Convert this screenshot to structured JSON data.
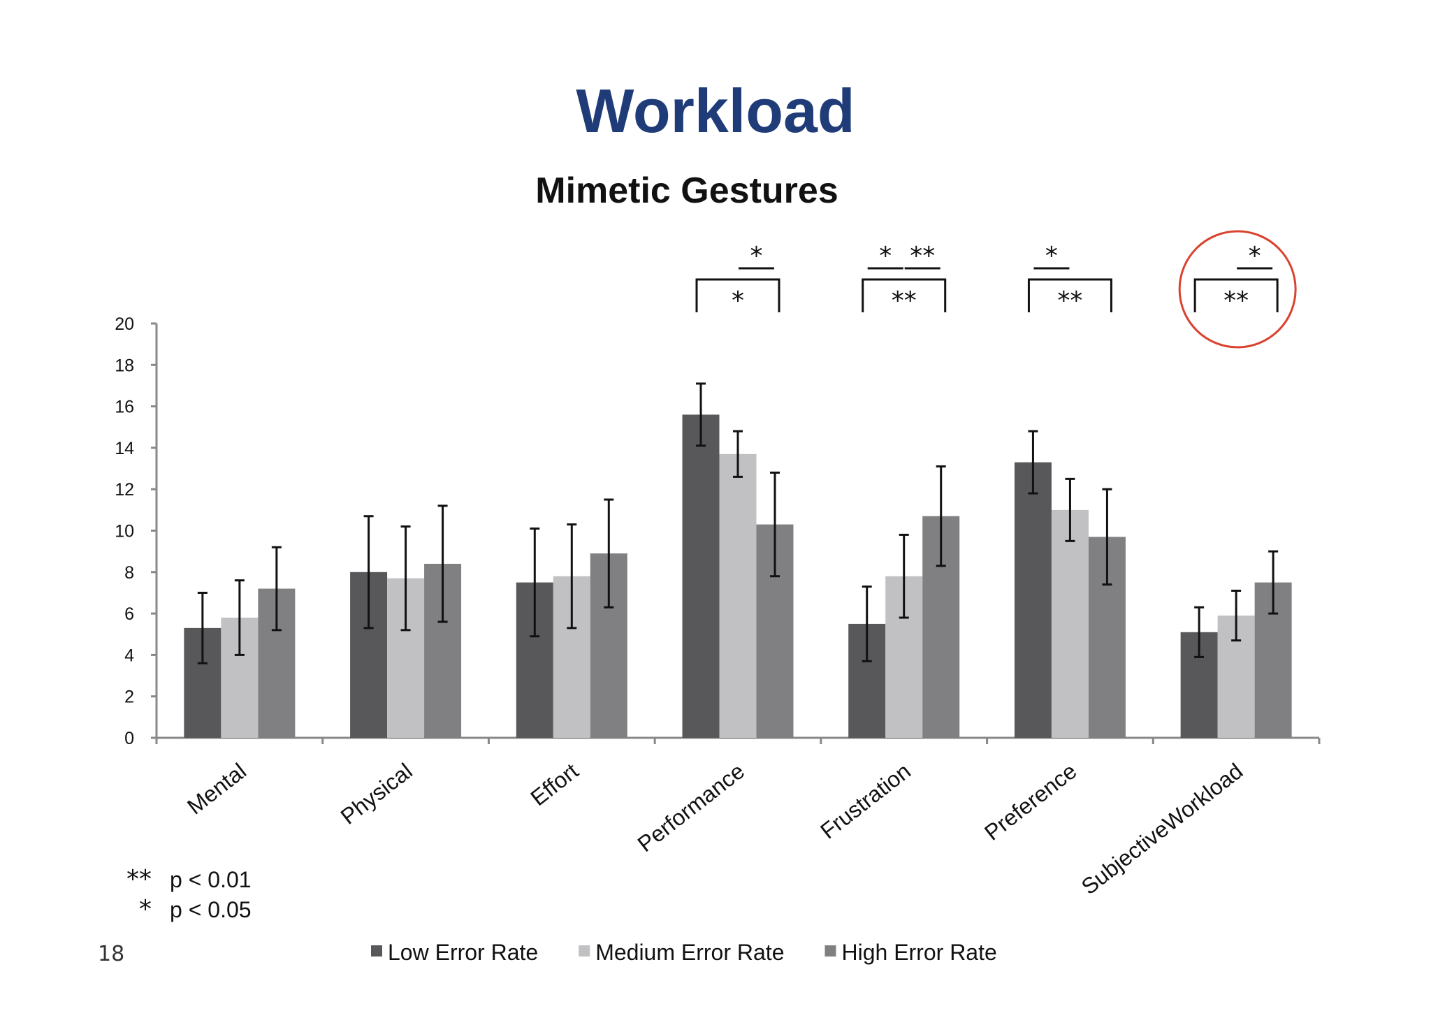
{
  "slide": {
    "title": "Workload",
    "page_number": "18"
  },
  "chart_data": {
    "type": "bar",
    "title": "Mimetic Gestures",
    "xlabel": "",
    "ylabel": "",
    "ylim": [
      0,
      20
    ],
    "yticks": [
      0,
      2,
      4,
      6,
      8,
      10,
      12,
      14,
      16,
      18,
      20
    ],
    "grid": false,
    "legend_position": "bottom",
    "categories": [
      "Mental",
      "Physical",
      "Effort",
      "Performance",
      "Frustration",
      "Preference",
      "SubjectiveWorkload"
    ],
    "series": [
      {
        "name": "Low Error Rate",
        "color": "#58585b",
        "values": [
          5.3,
          8.0,
          7.5,
          15.6,
          5.5,
          13.3,
          5.1
        ],
        "error": [
          1.7,
          2.7,
          2.6,
          1.5,
          1.8,
          1.5,
          1.2
        ]
      },
      {
        "name": "Medium Error Rate",
        "color": "#c1c0c3",
        "values": [
          5.8,
          7.7,
          7.8,
          13.7,
          7.8,
          11.0,
          5.9
        ],
        "error": [
          1.8,
          2.5,
          2.5,
          1.1,
          2.0,
          1.5,
          1.2
        ]
      },
      {
        "name": "High Error Rate",
        "color": "#808083",
        "values": [
          7.2,
          8.4,
          8.9,
          10.3,
          10.7,
          9.7,
          7.5
        ],
        "error": [
          2.0,
          2.8,
          2.6,
          2.5,
          2.4,
          2.3,
          1.5
        ]
      }
    ],
    "significance": [
      {
        "category": "Performance",
        "pair": "Medium-High",
        "label": "*"
      },
      {
        "category": "Performance",
        "pair": "Low-High",
        "label": "*"
      },
      {
        "category": "Frustration",
        "pair": "Low-Medium",
        "label": "*"
      },
      {
        "category": "Frustration",
        "pair": "Medium-High",
        "label": "**"
      },
      {
        "category": "Frustration",
        "pair": "Low-High",
        "label": "**"
      },
      {
        "category": "Preference",
        "pair": "Low-Medium",
        "label": "*"
      },
      {
        "category": "Preference",
        "pair": "Low-High",
        "label": "**"
      },
      {
        "category": "SubjectiveWorkload",
        "pair": "Medium-High",
        "label": "*"
      },
      {
        "category": "SubjectiveWorkload",
        "pair": "Low-High",
        "label": "**"
      }
    ],
    "highlight": {
      "category": "SubjectiveWorkload",
      "shape": "circle",
      "color": "#d9432f"
    },
    "notes": [
      {
        "symbol": "**",
        "text": "p < 0.01"
      },
      {
        "symbol": "*",
        "text": "p < 0.05"
      }
    ]
  }
}
